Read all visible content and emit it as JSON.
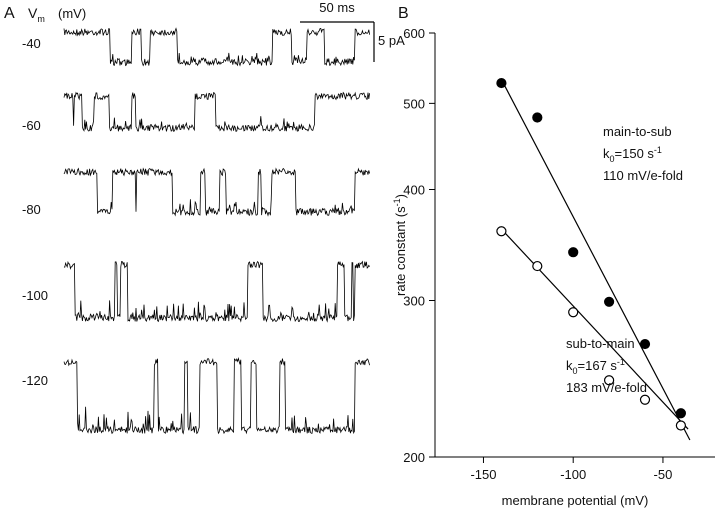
{
  "panel_a": {
    "label": "A",
    "v_label": "V",
    "v_sub": "m",
    "v_unit": "(mV)",
    "time_bar": "50 ms",
    "current_bar": "5 pA",
    "traces": [
      "-40",
      "-60",
      "-80",
      "-100",
      "-120"
    ]
  },
  "chart_data": {
    "type": "scatter",
    "panel_label": "B",
    "x_label": "membrane potential (mV)",
    "y_label": "rate constant (s",
    "y_label_sup": "-1",
    "y_label_end": ")",
    "xlim": [
      -177,
      -21
    ],
    "xticks": [
      -150,
      -100,
      -50
    ],
    "ylim": [
      200,
      600
    ],
    "yticks": [
      200,
      300,
      400,
      500,
      600
    ],
    "log_y": true,
    "series": [
      {
        "filled": true,
        "x": [
          -140,
          -120,
          -100,
          -80,
          -60,
          -40
        ],
        "values": [
          527,
          482,
          340,
          299,
          268,
          224
        ]
      },
      {
        "filled": false,
        "x": [
          -140,
          -120,
          -100,
          -80,
          -60,
          -40
        ],
        "values": [
          359,
          328,
          291,
          244,
          232,
          217
        ]
      }
    ],
    "fits": [
      {
        "x": [
          -140,
          -35
        ],
        "values": [
          532,
          209
        ]
      },
      {
        "x": [
          -140,
          -36
        ],
        "values": [
          361,
          215
        ]
      }
    ],
    "annotations": [
      [
        [
          {
            "t": "main-to-sub"
          }
        ],
        [
          {
            "t": "k"
          },
          {
            "t": "0",
            "sub": true
          },
          {
            "t": "=150 s"
          },
          {
            "t": "-1",
            "sup": true
          }
        ],
        [
          {
            "t": "110 mV/e-fold"
          }
        ]
      ],
      [
        [
          {
            "t": "sub-to-main"
          }
        ],
        [
          {
            "t": "k"
          },
          {
            "t": "0",
            "sub": true
          },
          {
            "t": "=167 s"
          },
          {
            "t": "-1",
            "sup": true
          }
        ],
        [
          {
            "t": "183 mV/e-fold"
          }
        ]
      ]
    ]
  }
}
